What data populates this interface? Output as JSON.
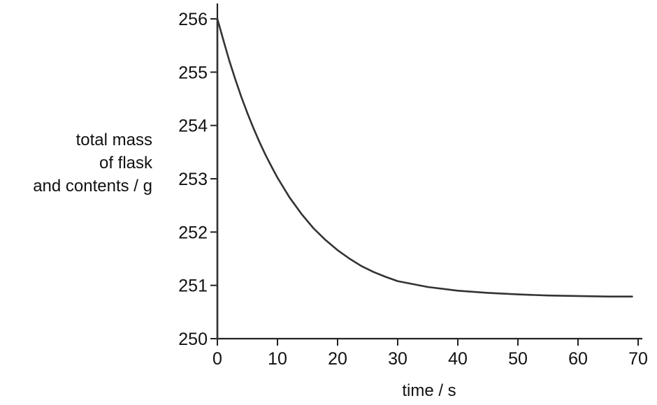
{
  "chart_data": {
    "type": "line",
    "title": "",
    "xlabel": "time / s",
    "ylabel_lines": [
      "total mass",
      "of flask",
      "and contents / g"
    ],
    "xlim": [
      0,
      70
    ],
    "ylim": [
      250,
      256
    ],
    "xticks": [
      0,
      10,
      20,
      30,
      40,
      50,
      60,
      70
    ],
    "yticks": [
      250,
      251,
      252,
      253,
      254,
      255,
      256
    ],
    "grid": false,
    "line_color": "#333333",
    "axis_color": "#222222",
    "series": [
      {
        "x": [
          0,
          1,
          2,
          3,
          4,
          5,
          6,
          7,
          8,
          9,
          10,
          12,
          14,
          16,
          18,
          20,
          22,
          24,
          26,
          28,
          30,
          35,
          40,
          45,
          50,
          55,
          60,
          65,
          69
        ],
        "y": [
          256.0,
          255.6,
          255.21,
          254.86,
          254.53,
          254.23,
          253.95,
          253.69,
          253.45,
          253.23,
          253.02,
          252.65,
          252.34,
          252.07,
          251.85,
          251.66,
          251.5,
          251.36,
          251.25,
          251.16,
          251.08,
          250.97,
          250.9,
          250.86,
          250.83,
          250.81,
          250.8,
          250.79,
          250.79
        ]
      }
    ]
  }
}
